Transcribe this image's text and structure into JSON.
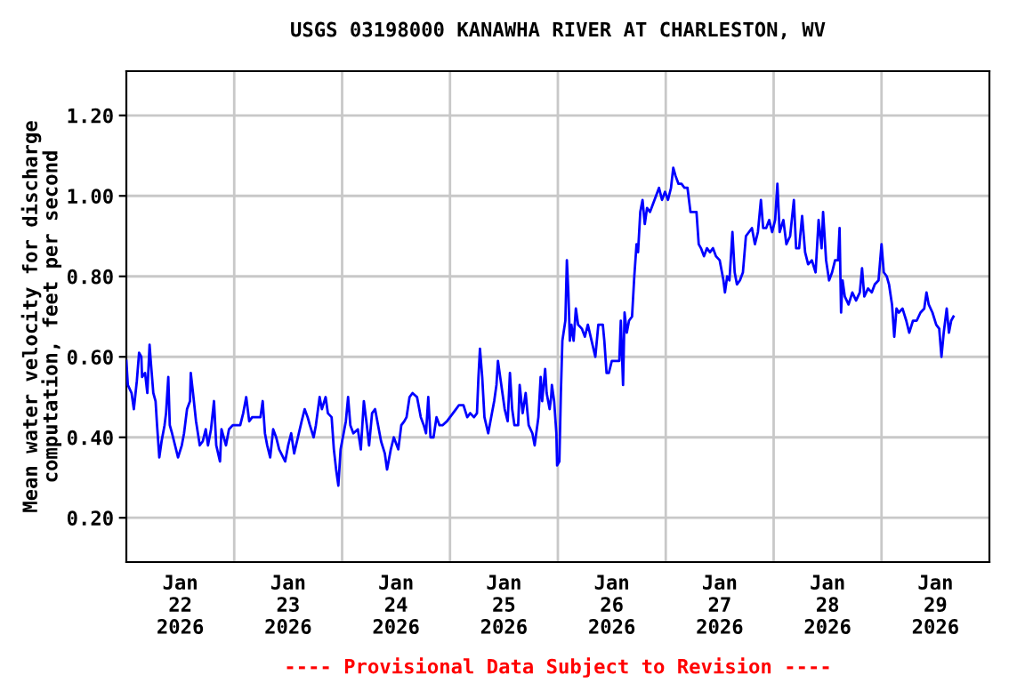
{
  "chart_data": {
    "type": "line",
    "title": "USGS 03198000 KANAWHA RIVER AT CHARLESTON, WV",
    "ylabel": "Mean water velocity for discharge\ncomputation, feet per second",
    "annotations": [
      "---- Provisional Data Subject to Revision ----"
    ],
    "xlim": [
      "2026-01-22T00:00",
      "2026-01-30T00:00"
    ],
    "xticks": [
      {
        "value": "2026-01-22T12:00",
        "label": "Jan\n22\n2026"
      },
      {
        "value": "2026-01-23T00:00",
        "label": null
      },
      {
        "value": "2026-01-23T12:00",
        "label": "Jan\n23\n2026"
      },
      {
        "value": "2026-01-24T00:00",
        "label": null
      },
      {
        "value": "2026-01-24T12:00",
        "label": "Jan\n24\n2026"
      },
      {
        "value": "2026-01-25T00:00",
        "label": null
      },
      {
        "value": "2026-01-25T12:00",
        "label": "Jan\n25\n2026"
      },
      {
        "value": "2026-01-26T00:00",
        "label": null
      },
      {
        "value": "2026-01-26T12:00",
        "label": "Jan\n26\n2026"
      },
      {
        "value": "2026-01-27T00:00",
        "label": null
      },
      {
        "value": "2026-01-27T12:00",
        "label": "Jan\n27\n2026"
      },
      {
        "value": "2026-01-28T00:00",
        "label": null
      },
      {
        "value": "2026-01-28T12:00",
        "label": "Jan\n28\n2026"
      },
      {
        "value": "2026-01-29T00:00",
        "label": null
      },
      {
        "value": "2026-01-29T12:00",
        "label": "Jan\n29\n2026"
      }
    ],
    "ylim": [
      0.09,
      1.31
    ],
    "yticks": [
      {
        "value": 0.2,
        "label": "0.20"
      },
      {
        "value": 0.4,
        "label": "0.40"
      },
      {
        "value": 0.6,
        "label": "0.60"
      },
      {
        "value": 0.8,
        "label": "0.80"
      },
      {
        "value": 1.0,
        "label": "1.00"
      },
      {
        "value": 1.2,
        "label": "1.20"
      }
    ],
    "grid": true,
    "series": [
      {
        "color": "#0000ff",
        "x": [
          "2026-01-22T00:00",
          "2026-01-22T00:20",
          "2026-01-22T01:10",
          "2026-01-22T01:40",
          "2026-01-22T02:20",
          "2026-01-22T02:50",
          "2026-01-22T03:20",
          "2026-01-22T03:30",
          "2026-01-22T04:10",
          "2026-01-22T04:40",
          "2026-01-22T05:10",
          "2026-01-22T05:30",
          "2026-01-22T06:00",
          "2026-01-22T06:30",
          "2026-01-22T06:50",
          "2026-01-22T07:20",
          "2026-01-22T07:50",
          "2026-01-22T08:30",
          "2026-01-22T08:50",
          "2026-01-22T09:20",
          "2026-01-22T09:40",
          "2026-01-22T10:10",
          "2026-01-22T10:50",
          "2026-01-22T11:30",
          "2026-01-22T12:20",
          "2026-01-22T12:50",
          "2026-01-22T13:30",
          "2026-01-22T14:10",
          "2026-01-22T14:20",
          "2026-01-22T14:50",
          "2026-01-22T15:30",
          "2026-01-22T16:20",
          "2026-01-22T17:00",
          "2026-01-22T17:40",
          "2026-01-22T18:10",
          "2026-01-22T18:50",
          "2026-01-22T19:30",
          "2026-01-22T20:00",
          "2026-01-22T20:50",
          "2026-01-22T21:10",
          "2026-01-22T22:10",
          "2026-01-22T22:50",
          "2026-01-22T23:40",
          "2026-01-23T00:30",
          "2026-01-23T01:20",
          "2026-01-23T02:00",
          "2026-01-23T02:40",
          "2026-01-23T03:20",
          "2026-01-23T04:00",
          "2026-01-23T05:00",
          "2026-01-23T05:50",
          "2026-01-23T06:20",
          "2026-01-23T06:50",
          "2026-01-23T07:20",
          "2026-01-23T08:00",
          "2026-01-23T08:40",
          "2026-01-23T09:20",
          "2026-01-23T10:00",
          "2026-01-23T11:20",
          "2026-01-23T12:00",
          "2026-01-23T12:40",
          "2026-01-23T13:20",
          "2026-01-23T14:10",
          "2026-01-23T15:00",
          "2026-01-23T15:40",
          "2026-01-23T16:20",
          "2026-01-23T16:50",
          "2026-01-23T17:40",
          "2026-01-23T18:10",
          "2026-01-23T19:00",
          "2026-01-23T19:30",
          "2026-01-23T20:20",
          "2026-01-23T20:50",
          "2026-01-23T21:40",
          "2026-01-23T22:10",
          "2026-01-23T22:40",
          "2026-01-23T23:10",
          "2026-01-23T23:40",
          "2026-01-24T00:20",
          "2026-01-24T00:50",
          "2026-01-24T01:20",
          "2026-01-24T01:50",
          "2026-01-24T02:30",
          "2026-01-24T03:30",
          "2026-01-24T04:10",
          "2026-01-24T04:50",
          "2026-01-24T05:30",
          "2026-01-24T06:00",
          "2026-01-24T06:40",
          "2026-01-24T07:20",
          "2026-01-24T08:00",
          "2026-01-24T08:40",
          "2026-01-24T09:30",
          "2026-01-24T10:00",
          "2026-01-24T10:50",
          "2026-01-24T11:30",
          "2026-01-24T12:30",
          "2026-01-24T13:10",
          "2026-01-24T13:50",
          "2026-01-24T14:20",
          "2026-01-24T15:00",
          "2026-01-24T15:40",
          "2026-01-24T16:40",
          "2026-01-24T17:30",
          "2026-01-24T18:10",
          "2026-01-24T18:40",
          "2026-01-24T19:10",
          "2026-01-24T19:40",
          "2026-01-24T20:20",
          "2026-01-24T21:00",
          "2026-01-24T21:40",
          "2026-01-24T22:20",
          "2026-01-24T23:20",
          "2026-01-25T00:00",
          "2026-01-25T00:40",
          "2026-01-25T01:20",
          "2026-01-25T02:00",
          "2026-01-25T03:00",
          "2026-01-25T03:50",
          "2026-01-25T04:30",
          "2026-01-25T05:20",
          "2026-01-25T06:00",
          "2026-01-25T06:20",
          "2026-01-25T06:40",
          "2026-01-25T07:10",
          "2026-01-25T07:40",
          "2026-01-25T08:30",
          "2026-01-25T09:20",
          "2026-01-25T09:50",
          "2026-01-25T10:20",
          "2026-01-25T10:40",
          "2026-01-25T11:10",
          "2026-01-25T11:40",
          "2026-01-25T12:10",
          "2026-01-25T12:50",
          "2026-01-25T13:20",
          "2026-01-25T13:50",
          "2026-01-25T14:20",
          "2026-01-25T15:10",
          "2026-01-25T15:30",
          "2026-01-25T16:10",
          "2026-01-25T16:50",
          "2026-01-25T17:30",
          "2026-01-25T18:20",
          "2026-01-25T18:50",
          "2026-01-25T19:40",
          "2026-01-25T20:10",
          "2026-01-25T20:30",
          "2026-01-25T21:10",
          "2026-01-25T21:30",
          "2026-01-25T22:10",
          "2026-01-25T22:30",
          "2026-01-25T22:40",
          "2026-01-25T23:10",
          "2026-01-25T23:40",
          "2026-01-25T23:50",
          "2026-01-26T00:20",
          "2026-01-26T00:40",
          "2026-01-26T01:00",
          "2026-01-26T01:40",
          "2026-01-26T02:00",
          "2026-01-26T02:20",
          "2026-01-26T02:40",
          "2026-01-26T03:00",
          "2026-01-26T03:30",
          "2026-01-26T04:00",
          "2026-01-26T04:30",
          "2026-01-26T05:20",
          "2026-01-26T06:00",
          "2026-01-26T06:40",
          "2026-01-26T07:30",
          "2026-01-26T08:20",
          "2026-01-26T09:00",
          "2026-01-26T10:00",
          "2026-01-26T10:20",
          "2026-01-26T10:50",
          "2026-01-26T11:20",
          "2026-01-26T12:00",
          "2026-01-26T12:50",
          "2026-01-26T13:40",
          "2026-01-26T14:00",
          "2026-01-26T14:30",
          "2026-01-26T14:50",
          "2026-01-26T15:20",
          "2026-01-26T15:50",
          "2026-01-26T16:30",
          "2026-01-26T17:00",
          "2026-01-26T17:30",
          "2026-01-26T17:50",
          "2026-01-26T18:20",
          "2026-01-26T18:50",
          "2026-01-26T19:20",
          "2026-01-26T19:50",
          "2026-01-26T20:30",
          "2026-01-26T21:10",
          "2026-01-26T21:50",
          "2026-01-26T22:30",
          "2026-01-26T23:10",
          "2026-01-26T23:50",
          "2026-01-27T00:30",
          "2026-01-27T01:10",
          "2026-01-27T01:40",
          "2026-01-27T02:10",
          "2026-01-27T02:50",
          "2026-01-27T03:30",
          "2026-01-27T04:10",
          "2026-01-27T04:50",
          "2026-01-27T05:30",
          "2026-01-27T06:10",
          "2026-01-27T06:50",
          "2026-01-27T07:20",
          "2026-01-27T07:50",
          "2026-01-27T08:30",
          "2026-01-27T09:10",
          "2026-01-27T09:50",
          "2026-01-27T10:30",
          "2026-01-27T11:10",
          "2026-01-27T12:00",
          "2026-01-27T12:50",
          "2026-01-27T13:10",
          "2026-01-27T13:40",
          "2026-01-27T14:10",
          "2026-01-27T14:50",
          "2026-01-27T15:20",
          "2026-01-27T15:50",
          "2026-01-27T16:30",
          "2026-01-27T17:10",
          "2026-01-27T17:50",
          "2026-01-27T18:30",
          "2026-01-27T19:10",
          "2026-01-27T19:50",
          "2026-01-27T20:30",
          "2026-01-27T21:10",
          "2026-01-27T21:40",
          "2026-01-27T22:20",
          "2026-01-27T23:00",
          "2026-01-27T23:40",
          "2026-01-28T00:20",
          "2026-01-28T00:50",
          "2026-01-28T01:20",
          "2026-01-28T02:10",
          "2026-01-28T02:50",
          "2026-01-28T03:40",
          "2026-01-28T04:30",
          "2026-01-28T05:00",
          "2026-01-28T05:40",
          "2026-01-28T06:20",
          "2026-01-28T07:00",
          "2026-01-28T07:40",
          "2026-01-28T08:30",
          "2026-01-28T09:20",
          "2026-01-28T10:00",
          "2026-01-28T10:40",
          "2026-01-28T11:00",
          "2026-01-28T11:40",
          "2026-01-28T12:20",
          "2026-01-28T13:00",
          "2026-01-28T13:40",
          "2026-01-28T14:20",
          "2026-01-28T14:40",
          "2026-01-28T15:00",
          "2026-01-28T15:20",
          "2026-01-28T15:50",
          "2026-01-28T16:40",
          "2026-01-28T17:30",
          "2026-01-28T18:20",
          "2026-01-28T19:10",
          "2026-01-28T19:40",
          "2026-01-28T20:10",
          "2026-01-28T21:00",
          "2026-01-28T21:50",
          "2026-01-28T22:30",
          "2026-01-28T23:20",
          "2026-01-29T00:00",
          "2026-01-29T00:30",
          "2026-01-29T01:10",
          "2026-01-29T01:40",
          "2026-01-29T02:20",
          "2026-01-29T02:50",
          "2026-01-29T03:20",
          "2026-01-29T03:50",
          "2026-01-29T04:40",
          "2026-01-29T05:30",
          "2026-01-29T06:10",
          "2026-01-29T07:00",
          "2026-01-29T07:50",
          "2026-01-29T08:40",
          "2026-01-29T09:30",
          "2026-01-29T10:00",
          "2026-01-29T10:30",
          "2026-01-29T11:20",
          "2026-01-29T12:10",
          "2026-01-29T12:50",
          "2026-01-29T13:20",
          "2026-01-29T13:50",
          "2026-01-29T14:30",
          "2026-01-29T15:00",
          "2026-01-29T15:30",
          "2026-01-29T16:00"
        ],
        "values": [
          0.59,
          0.53,
          0.51,
          0.47,
          0.54,
          0.61,
          0.6,
          0.55,
          0.56,
          0.51,
          0.63,
          0.58,
          0.51,
          0.49,
          0.43,
          0.35,
          0.39,
          0.43,
          0.46,
          0.55,
          0.43,
          0.41,
          0.38,
          0.35,
          0.38,
          0.41,
          0.47,
          0.49,
          0.56,
          0.51,
          0.44,
          0.38,
          0.39,
          0.42,
          0.38,
          0.42,
          0.49,
          0.38,
          0.34,
          0.42,
          0.38,
          0.42,
          0.43,
          0.43,
          0.43,
          0.46,
          0.5,
          0.44,
          0.45,
          0.45,
          0.45,
          0.49,
          0.41,
          0.38,
          0.35,
          0.42,
          0.4,
          0.37,
          0.34,
          0.38,
          0.41,
          0.36,
          0.4,
          0.44,
          0.47,
          0.45,
          0.43,
          0.4,
          0.43,
          0.5,
          0.47,
          0.5,
          0.46,
          0.45,
          0.37,
          0.32,
          0.28,
          0.37,
          0.41,
          0.44,
          0.5,
          0.43,
          0.41,
          0.42,
          0.37,
          0.49,
          0.43,
          0.38,
          0.46,
          0.47,
          0.43,
          0.39,
          0.36,
          0.32,
          0.37,
          0.4,
          0.37,
          0.43,
          0.44,
          0.45,
          0.5,
          0.51,
          0.5,
          0.45,
          0.43,
          0.41,
          0.5,
          0.4,
          0.4,
          0.45,
          0.43,
          0.43,
          0.44,
          0.45,
          0.46,
          0.47,
          0.48,
          0.48,
          0.45,
          0.46,
          0.45,
          0.46,
          0.55,
          0.62,
          0.55,
          0.45,
          0.41,
          0.46,
          0.49,
          0.53,
          0.59,
          0.55,
          0.51,
          0.47,
          0.44,
          0.56,
          0.47,
          0.43,
          0.43,
          0.53,
          0.46,
          0.51,
          0.43,
          0.41,
          0.38,
          0.45,
          0.55,
          0.49,
          0.57,
          0.51,
          0.47,
          0.5,
          0.53,
          0.49,
          0.41,
          0.33,
          0.34,
          0.51,
          0.64,
          0.69,
          0.84,
          0.76,
          0.64,
          0.68,
          0.64,
          0.72,
          0.68,
          0.67,
          0.65,
          0.68,
          0.64,
          0.6,
          0.68,
          0.68,
          0.64,
          0.56,
          0.56,
          0.59,
          0.59,
          0.59,
          0.69,
          0.53,
          0.71,
          0.66,
          0.69,
          0.7,
          0.8,
          0.88,
          0.86,
          0.96,
          0.99,
          0.93,
          0.97,
          0.96,
          0.98,
          1.0,
          1.02,
          0.99,
          1.01,
          0.99,
          1.02,
          1.07,
          1.05,
          1.03,
          1.03,
          1.02,
          1.02,
          0.96,
          0.96,
          0.96,
          0.88,
          0.87,
          0.85,
          0.87,
          0.86,
          0.87,
          0.85,
          0.84,
          0.79,
          0.76,
          0.8,
          0.79,
          0.91,
          0.81,
          0.78,
          0.79,
          0.81,
          0.9,
          0.91,
          0.92,
          0.88,
          0.91,
          0.99,
          0.92,
          0.92,
          0.94,
          0.91,
          0.94,
          1.03,
          0.91,
          0.94,
          0.88,
          0.9,
          0.99,
          0.87,
          0.87,
          0.95,
          0.86,
          0.83,
          0.84,
          0.81,
          0.94,
          0.87,
          0.96,
          0.84,
          0.79,
          0.81,
          0.84,
          0.84,
          0.92,
          0.71,
          0.79,
          0.75,
          0.73,
          0.76,
          0.74,
          0.76,
          0.82,
          0.75,
          0.77,
          0.76,
          0.78,
          0.79,
          0.88,
          0.81,
          0.8,
          0.78,
          0.73,
          0.65,
          0.72,
          0.71,
          0.72,
          0.69,
          0.66,
          0.69,
          0.69,
          0.71,
          0.72,
          0.76,
          0.73,
          0.71,
          0.68,
          0.67,
          0.6,
          0.66,
          0.72,
          0.66,
          0.69,
          0.7
        ]
      }
    ]
  }
}
